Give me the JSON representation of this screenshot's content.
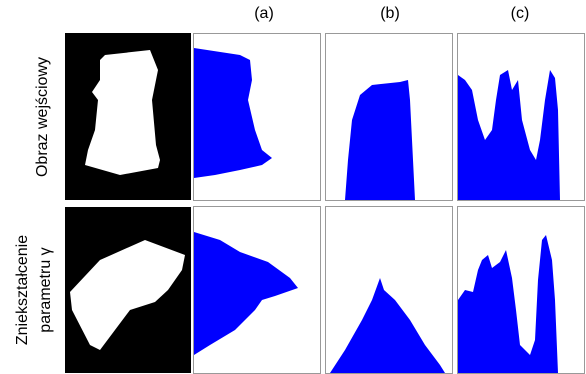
{
  "columns": [
    "(a)",
    "(b)",
    "(c)"
  ],
  "rows": [
    {
      "label": "Obraz wejściowy"
    },
    {
      "label": [
        "Zniekształcenie",
        "parametru γ"
      ]
    }
  ]
}
